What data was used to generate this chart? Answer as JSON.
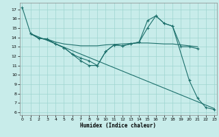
{
  "xlabel": "Humidex (Indice chaleur)",
  "background_color": "#c8ecea",
  "grid_color": "#9dd4d0",
  "line_color": "#1a6e6a",
  "xlim": [
    -0.3,
    23.3
  ],
  "ylim": [
    5.7,
    17.7
  ],
  "yticks": [
    6,
    7,
    8,
    9,
    10,
    11,
    12,
    13,
    14,
    15,
    16,
    17
  ],
  "xticks": [
    0,
    1,
    2,
    3,
    4,
    5,
    6,
    7,
    8,
    9,
    10,
    11,
    12,
    13,
    14,
    15,
    16,
    17,
    18,
    19,
    20,
    21,
    22,
    23
  ],
  "line1_x": [
    0,
    1,
    2,
    3,
    4,
    5,
    6,
    7,
    8,
    9,
    10,
    11,
    12,
    13,
    14,
    15,
    16,
    17,
    18,
    19,
    20,
    21
  ],
  "line1_y": [
    17.2,
    14.4,
    13.9,
    13.8,
    13.3,
    12.9,
    12.2,
    11.5,
    11.0,
    11.0,
    12.5,
    13.2,
    13.1,
    13.3,
    13.5,
    15.0,
    16.3,
    15.5,
    15.2,
    13.0,
    13.0,
    12.8
  ],
  "line2_x": [
    1,
    2,
    3,
    4,
    5,
    6,
    7,
    8,
    9,
    10,
    11,
    12,
    13,
    14,
    15,
    16,
    17,
    18,
    19,
    20,
    21
  ],
  "line2_y": [
    14.4,
    13.9,
    13.8,
    13.5,
    13.3,
    13.2,
    13.1,
    13.1,
    13.1,
    13.2,
    13.25,
    13.3,
    13.35,
    13.4,
    13.4,
    13.35,
    13.3,
    13.3,
    13.2,
    13.1,
    13.0
  ],
  "line3_x": [
    1,
    2,
    3,
    4,
    5,
    6,
    7,
    8,
    9,
    10,
    11,
    12,
    13,
    14,
    15,
    16,
    17,
    18,
    20,
    21,
    22,
    23
  ],
  "line3_y": [
    14.4,
    13.9,
    13.8,
    13.3,
    12.9,
    12.2,
    11.8,
    11.5,
    11.0,
    12.5,
    13.2,
    13.1,
    13.3,
    13.5,
    15.8,
    16.3,
    15.5,
    15.2,
    9.4,
    7.5,
    6.5,
    6.3
  ],
  "line4_x": [
    1,
    23
  ],
  "line4_y": [
    14.4,
    6.4
  ]
}
